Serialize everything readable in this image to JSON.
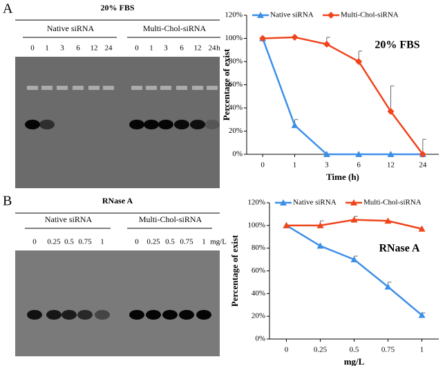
{
  "chart_data": [
    {
      "type": "line",
      "annotation": "20% FBS",
      "x_label": "Time (h)",
      "y_label": "Percentage of exist",
      "categories": [
        "0",
        "1",
        "3",
        "6",
        "12",
        "24"
      ],
      "series": [
        {
          "name": "Native siRNA",
          "color": "#3c8ee8",
          "marker": "triangle",
          "values": [
            100,
            25,
            0,
            0,
            0,
            0
          ],
          "errors": [
            null,
            5,
            null,
            null,
            null,
            null
          ]
        },
        {
          "name": "Multi-Chol-siRNA",
          "color": "#f0441b",
          "marker": "diamond",
          "values": [
            100,
            101,
            95,
            80,
            37,
            0
          ],
          "errors": [
            null,
            null,
            6,
            9,
            22,
            13
          ]
        }
      ],
      "ylim": [
        0,
        120
      ],
      "yticks": [
        {
          "value": 0,
          "label": "0%"
        },
        {
          "value": 20,
          "label": "20%"
        },
        {
          "value": 40,
          "label": "40%"
        },
        {
          "value": 60,
          "label": "60%"
        },
        {
          "value": 80,
          "label": "80%"
        },
        {
          "value": 100,
          "label": "100%"
        },
        {
          "value": 120,
          "label": "120%"
        }
      ],
      "legend": "top"
    },
    {
      "type": "line",
      "annotation": "RNase A",
      "x_label": "mg/L",
      "y_label": "Percentage of exist",
      "categories": [
        "0",
        "0.25",
        "0.5",
        "0.75",
        "1"
      ],
      "series": [
        {
          "name": "Native siRNA",
          "color": "#3c8ee8",
          "marker": "triangle",
          "values": [
            100,
            82,
            70,
            46,
            21
          ],
          "errors": [
            null,
            null,
            3,
            4,
            2
          ]
        },
        {
          "name": "Multi-Chol-siRNA",
          "color": "#f0441b",
          "marker": "triangle",
          "values": [
            100,
            100,
            105,
            104,
            97
          ],
          "errors": [
            null,
            4,
            3,
            null,
            null
          ]
        }
      ],
      "ylim": [
        0,
        120
      ],
      "yticks": [
        {
          "value": 0,
          "label": "0%"
        },
        {
          "value": 20,
          "label": "20%"
        },
        {
          "value": 40,
          "label": "40%"
        },
        {
          "value": 60,
          "label": "60%"
        },
        {
          "value": 80,
          "label": "80%"
        },
        {
          "value": 100,
          "label": "100%"
        },
        {
          "value": 120,
          "label": "120%"
        }
      ],
      "legend": "top"
    }
  ],
  "gels": [
    {
      "panel": "A",
      "title": "20% FBS",
      "groups": [
        "Native siRNA",
        "Multi-Chol-siRNA"
      ],
      "lanes": [
        "0",
        "1",
        "3",
        "6",
        "12",
        "24"
      ],
      "unit": "h"
    },
    {
      "panel": "B",
      "title": "RNase A",
      "groups": [
        "Native siRNA",
        "Multi-Chol-siRNA"
      ],
      "lanes": [
        "0",
        "0.25",
        "0.5",
        "0.75",
        "1"
      ],
      "unit": "mg/L"
    }
  ]
}
